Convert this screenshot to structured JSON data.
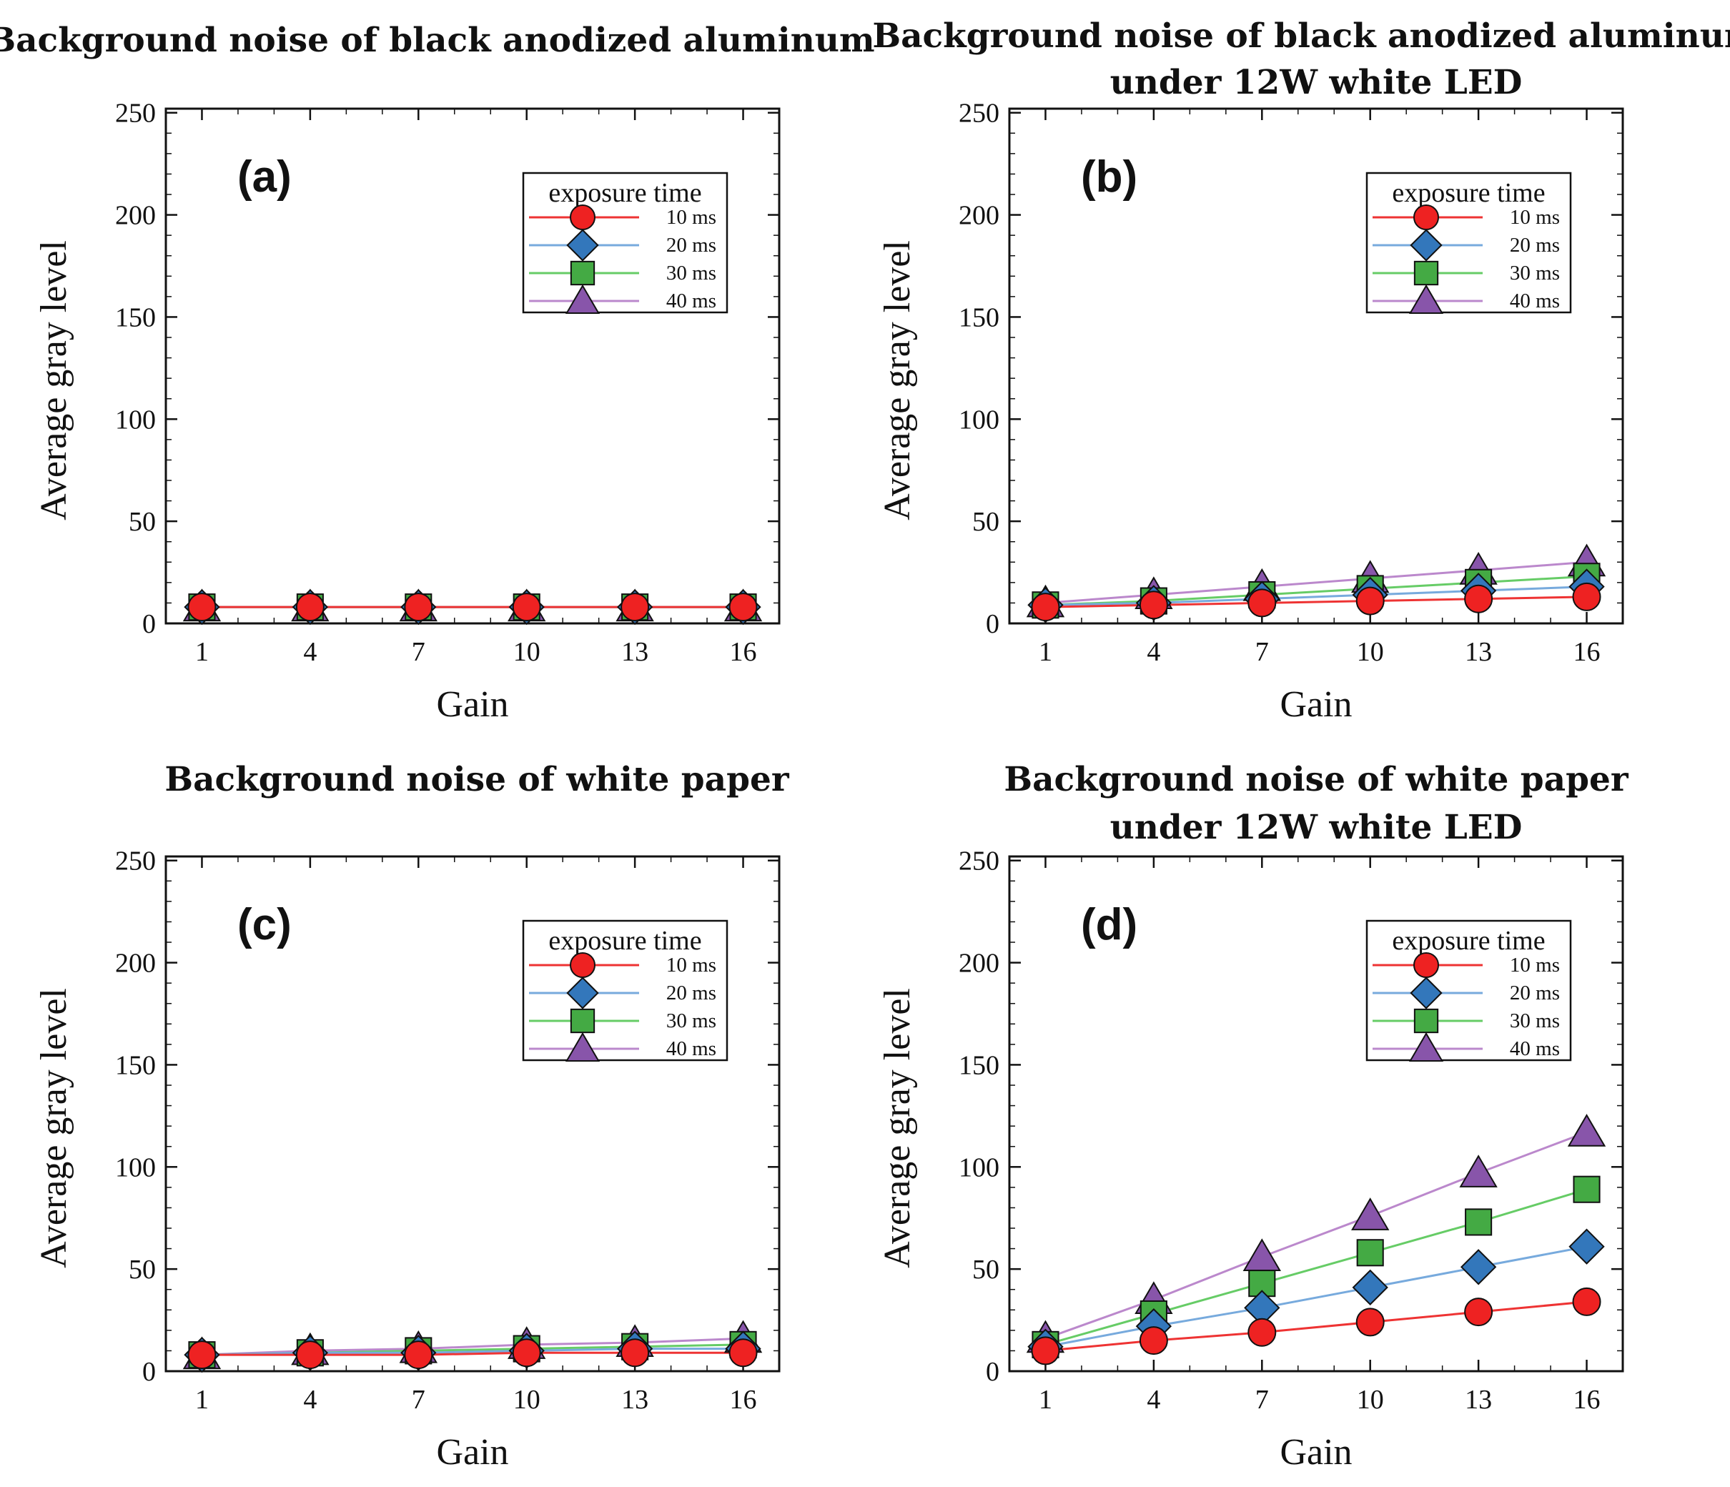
{
  "chart_data": [
    {
      "type": "line",
      "panel": "(a)",
      "title": [
        "Background noise of black anodized aluminum"
      ],
      "xlabel": "Gain",
      "ylabel": "Average gray level",
      "x": [
        1,
        4,
        7,
        10,
        13,
        16
      ],
      "xticks": [
        "1",
        "4",
        "7",
        "10",
        "13",
        "16"
      ],
      "yticks": [
        "0",
        "50",
        "100",
        "150",
        "200",
        "250"
      ],
      "xlim": [
        0,
        17
      ],
      "ylim": [
        0,
        252
      ],
      "grid": false,
      "legend_title": "exposure time",
      "legend_position": "top-right",
      "series": [
        {
          "name": "10 ms",
          "color": "#ee3333",
          "marker": "circle",
          "fill": "#ee2222",
          "values": [
            8,
            8,
            8,
            8,
            8,
            8
          ]
        },
        {
          "name": "20 ms",
          "color": "#77aadd",
          "marker": "diamond",
          "fill": "#3377bb",
          "values": [
            8,
            8,
            8,
            8,
            8,
            8
          ]
        },
        {
          "name": "30 ms",
          "color": "#66cc66",
          "marker": "square",
          "fill": "#44aa44",
          "values": [
            8,
            8,
            8,
            8,
            8,
            8
          ]
        },
        {
          "name": "40 ms",
          "color": "#bb88cc",
          "marker": "triangle",
          "fill": "#8855aa",
          "values": [
            8,
            8,
            8,
            8,
            8,
            8
          ]
        }
      ]
    },
    {
      "type": "line",
      "panel": "(b)",
      "title": [
        "Background noise of black anodized aluminum",
        "under 12W white LED"
      ],
      "xlabel": "Gain",
      "ylabel": "Average gray level",
      "x": [
        1,
        4,
        7,
        10,
        13,
        16
      ],
      "xticks": [
        "1",
        "4",
        "7",
        "10",
        "13",
        "16"
      ],
      "yticks": [
        "0",
        "50",
        "100",
        "150",
        "200",
        "250"
      ],
      "xlim": [
        0,
        17
      ],
      "ylim": [
        0,
        252
      ],
      "grid": false,
      "legend_title": "exposure time",
      "legend_position": "top-right",
      "series": [
        {
          "name": "10 ms",
          "color": "#ee3333",
          "marker": "circle",
          "fill": "#ee2222",
          "values": [
            8,
            9,
            10,
            11,
            12,
            13
          ]
        },
        {
          "name": "20 ms",
          "color": "#77aadd",
          "marker": "diamond",
          "fill": "#3377bb",
          "values": [
            9,
            10,
            12,
            14,
            16,
            18
          ]
        },
        {
          "name": "30 ms",
          "color": "#66cc66",
          "marker": "square",
          "fill": "#44aa44",
          "values": [
            9,
            11,
            14,
            17,
            20,
            23
          ]
        },
        {
          "name": "40 ms",
          "color": "#bb88cc",
          "marker": "triangle",
          "fill": "#8855aa",
          "values": [
            10,
            14,
            18,
            22,
            26,
            30
          ]
        }
      ]
    },
    {
      "type": "line",
      "panel": "(c)",
      "title": [
        "Background noise of white paper"
      ],
      "xlabel": "Gain",
      "ylabel": "Average gray level",
      "x": [
        1,
        4,
        7,
        10,
        13,
        16
      ],
      "xticks": [
        "1",
        "4",
        "7",
        "10",
        "13",
        "16"
      ],
      "yticks": [
        "0",
        "50",
        "100",
        "150",
        "200",
        "250"
      ],
      "xlim": [
        0,
        17
      ],
      "ylim": [
        0,
        252
      ],
      "grid": false,
      "legend_title": "exposure time",
      "legend_position": "top-right",
      "series": [
        {
          "name": "10 ms",
          "color": "#ee3333",
          "marker": "circle",
          "fill": "#ee2222",
          "values": [
            8,
            8,
            8,
            9,
            9,
            9
          ]
        },
        {
          "name": "20 ms",
          "color": "#77aadd",
          "marker": "diamond",
          "fill": "#3377bb",
          "values": [
            8,
            9,
            9,
            10,
            11,
            11
          ]
        },
        {
          "name": "30 ms",
          "color": "#66cc66",
          "marker": "square",
          "fill": "#44aa44",
          "values": [
            8,
            9,
            10,
            11,
            12,
            13
          ]
        },
        {
          "name": "40 ms",
          "color": "#bb88cc",
          "marker": "triangle",
          "fill": "#8855aa",
          "values": [
            8,
            10,
            11,
            13,
            14,
            16
          ]
        }
      ]
    },
    {
      "type": "line",
      "panel": "(d)",
      "title": [
        "Background noise of white paper",
        "under 12W white LED"
      ],
      "xlabel": "Gain",
      "ylabel": "Average gray level",
      "x": [
        1,
        4,
        7,
        10,
        13,
        16
      ],
      "xticks": [
        "1",
        "4",
        "7",
        "10",
        "13",
        "16"
      ],
      "yticks": [
        "0",
        "50",
        "100",
        "150",
        "200",
        "250"
      ],
      "xlim": [
        0,
        17
      ],
      "ylim": [
        0,
        252
      ],
      "grid": false,
      "legend_title": "exposure time",
      "legend_position": "top-right",
      "series": [
        {
          "name": "10 ms",
          "color": "#ee3333",
          "marker": "circle",
          "fill": "#ee2222",
          "values": [
            10,
            15,
            19,
            24,
            29,
            34
          ]
        },
        {
          "name": "20 ms",
          "color": "#77aadd",
          "marker": "diamond",
          "fill": "#3377bb",
          "values": [
            12,
            22,
            31,
            41,
            51,
            61
          ]
        },
        {
          "name": "30 ms",
          "color": "#66cc66",
          "marker": "square",
          "fill": "#44aa44",
          "values": [
            13,
            28,
            43,
            58,
            73,
            89
          ]
        },
        {
          "name": "40 ms",
          "color": "#bb88cc",
          "marker": "triangle",
          "fill": "#8855aa",
          "values": [
            16,
            35,
            56,
            76,
            97,
            117
          ]
        }
      ]
    }
  ]
}
